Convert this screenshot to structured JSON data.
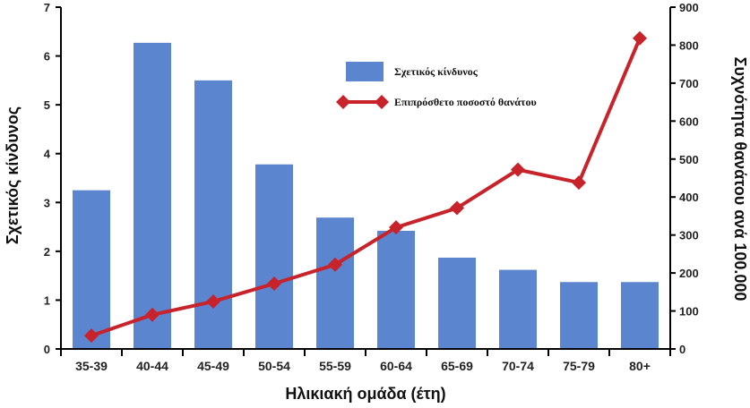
{
  "chart_data": {
    "type": "bar",
    "categories": [
      "35-39",
      "40-44",
      "45-49",
      "50-54",
      "55-59",
      "60-64",
      "65-69",
      "70-74",
      "75-79",
      "80+"
    ],
    "series": [
      {
        "name": "Σχετικός κίνδυνος",
        "type": "bar",
        "axis": "left",
        "color": "#5b85cf",
        "values": [
          3.25,
          6.27,
          5.5,
          3.78,
          2.69,
          2.42,
          1.87,
          1.62,
          1.37,
          1.37
        ]
      },
      {
        "name": "Επιπρόσθετο ποσοστό θανάτου",
        "type": "line",
        "axis": "right",
        "color": "#c8222a",
        "marker": "diamond",
        "values": [
          35,
          90,
          125,
          172,
          222,
          320,
          371,
          472,
          438,
          818
        ]
      }
    ],
    "xlabel": "Ηλικιακή ομάδα (έτη)",
    "ylabel_left": "Σχετικός κίνδυνος",
    "ylabel_right": "Συχνότητα θανάτου ανά 100.000",
    "ylim_left": [
      0,
      7
    ],
    "yticks_left": [
      "0",
      "1",
      "2",
      "3",
      "4",
      "5",
      "6",
      "7"
    ],
    "ylim_right": [
      0,
      900
    ],
    "yticks_right": [
      "0",
      "100",
      "200",
      "300",
      "400",
      "500",
      "600",
      "700",
      "800",
      "900"
    ],
    "grid": false,
    "legend_position": "top-center"
  }
}
